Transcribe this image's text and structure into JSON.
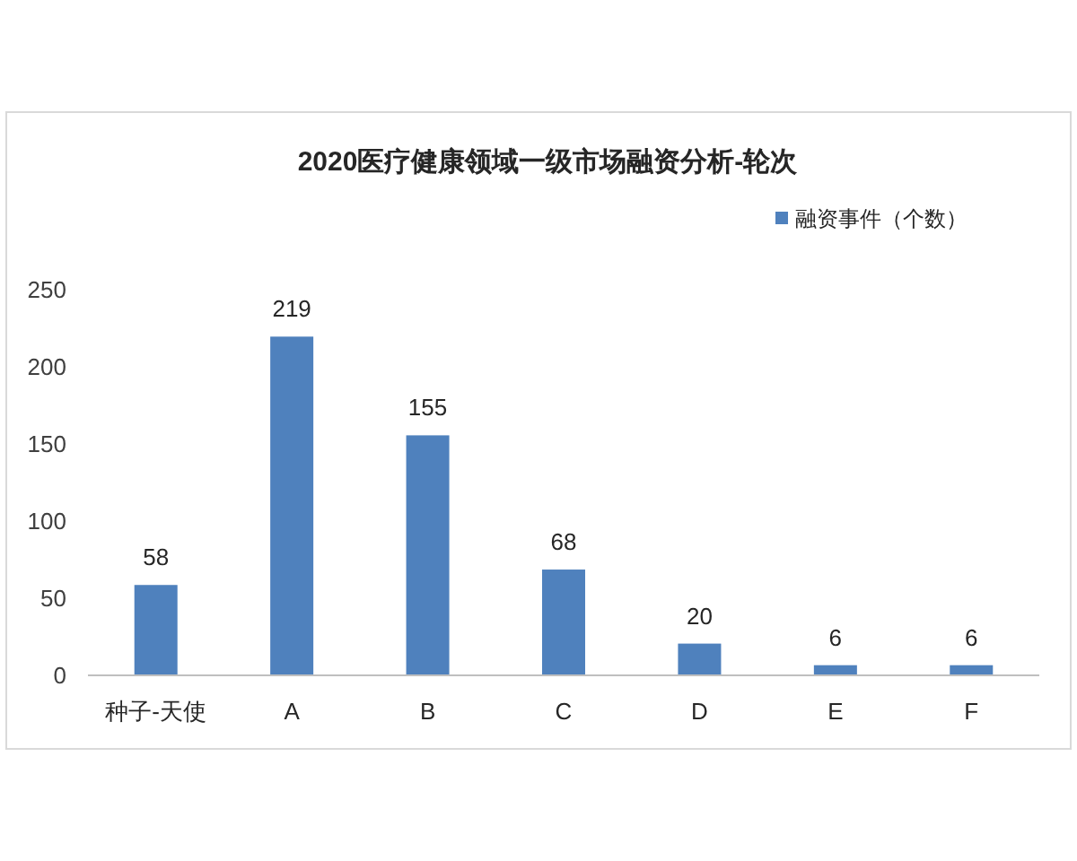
{
  "chart_data": {
    "type": "bar",
    "title": "2020医疗健康领域一级市场融资分析-轮次",
    "categories": [
      "种子-天使",
      "A",
      "B",
      "C",
      "D",
      "E",
      "F"
    ],
    "series": [
      {
        "name": "融资事件（个数）",
        "color": "#4f81bd",
        "values": [
          58,
          219,
          155,
          68,
          20,
          6,
          6
        ]
      }
    ],
    "ylim": [
      0,
      250
    ],
    "yticks": [
      0,
      50,
      100,
      150,
      200,
      250
    ],
    "data_labels": true,
    "legend": "top right",
    "grid": false
  }
}
